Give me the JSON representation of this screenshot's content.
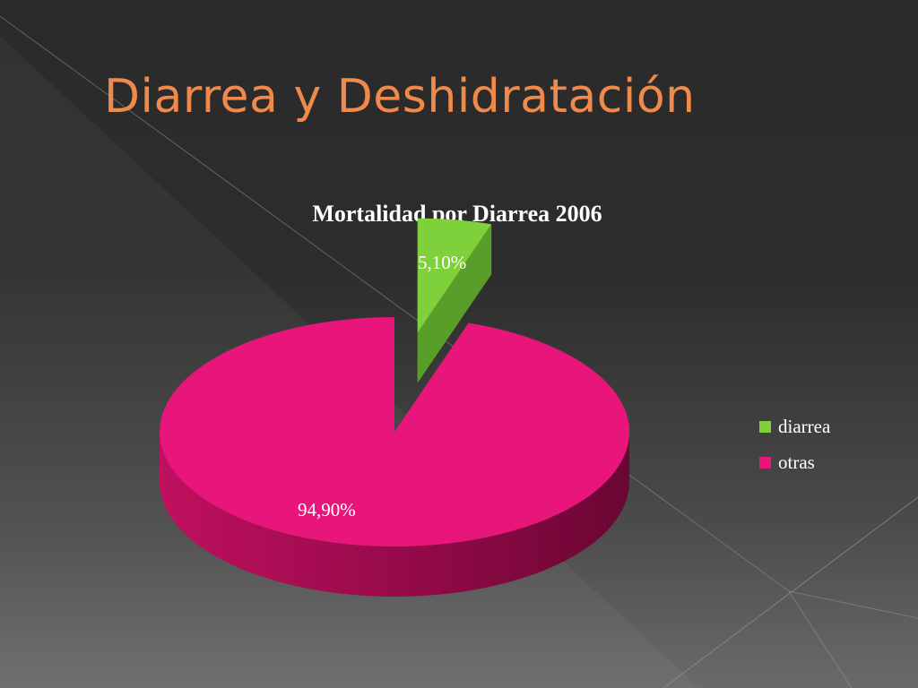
{
  "slide": {
    "title": "Diarrea y Deshidratación"
  },
  "colors": {
    "title": "#f08a4b",
    "diarrea_top": "#7ed13a",
    "diarrea_side": "#5a9e2a",
    "otras_top": "#e8167a",
    "otras_side_light": "#c0105f",
    "otras_side_dark": "#6a0633"
  },
  "chart_data": {
    "type": "pie",
    "title": "Mortalidad por Diarrea 2006",
    "categories": [
      "diarrea",
      "otras"
    ],
    "values": [
      5.1,
      94.9
    ],
    "data_labels": [
      "5,10%",
      "94,90%"
    ],
    "legend": {
      "placement": "right",
      "entries": [
        "diarrea",
        "otras"
      ]
    },
    "exploded": "diarrea",
    "style": "3d"
  }
}
